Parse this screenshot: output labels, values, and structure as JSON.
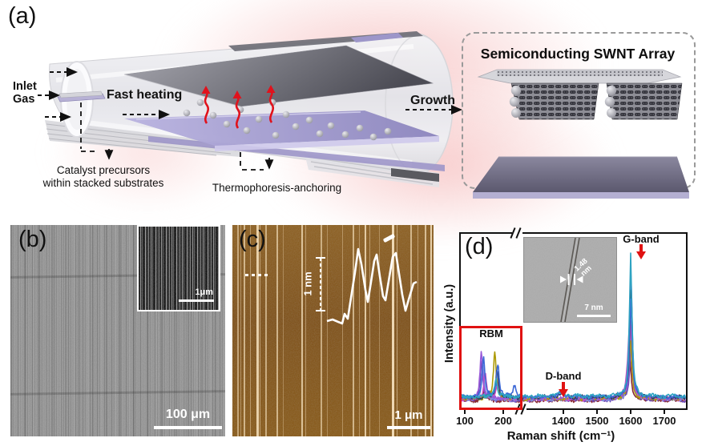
{
  "panel_a": {
    "label": "(a)",
    "inlet_gas": [
      "Inlet",
      "Gas"
    ],
    "fast_heating": "Fast heating",
    "growth": "Growth",
    "catalyst_caption": [
      "Catalyst precursors",
      "within stacked substrates"
    ],
    "thermophoresis_caption": "Thermophoresis-anchoring",
    "swnt_box_title": "Semiconducting SWNT Array"
  },
  "panel_b": {
    "label": "(b)",
    "scale_bar": "100 μm",
    "inset_scale_bar": "1μm"
  },
  "panel_c": {
    "label": "(c)",
    "height_scale": "1 nm",
    "scale_bar": "1 μm"
  },
  "panel_d": {
    "label": "(d)",
    "tem_inset": {
      "diameter_label": "1.48 nm",
      "scale_bar": "7 nm"
    }
  },
  "chart_data": {
    "type": "line",
    "xlabel": "Raman shift (cm⁻¹)",
    "ylabel": "Intensity (a.u.)",
    "x_ticks": [
      100,
      200,
      1400,
      1500,
      1600,
      1700
    ],
    "x_axis_break": [
      260,
      1330
    ],
    "annotations": [
      {
        "text": "RBM",
        "x": 150
      },
      {
        "text": "D-band",
        "x": 1390
      },
      {
        "text": "G-band",
        "x": 1600
      }
    ],
    "series": [
      {
        "name": "spectrum-maroon",
        "color": "#8a2b34",
        "peaks": [
          {
            "x": 152,
            "h": 0.06,
            "w": 5
          },
          {
            "x": 1560,
            "h": 0.05,
            "w": 8
          },
          {
            "x": 1597,
            "h": 0.34,
            "w": 5
          }
        ]
      },
      {
        "name": "spectrum-purple",
        "color": "#6a48b8",
        "peaks": [
          {
            "x": 144,
            "h": 0.26,
            "w": 4
          },
          {
            "x": 1602,
            "h": 0.46,
            "w": 5
          }
        ]
      },
      {
        "name": "spectrum-periwinkle",
        "color": "#7f8fe0",
        "peaks": [
          {
            "x": 147,
            "h": 0.23,
            "w": 4
          },
          {
            "x": 1601,
            "h": 0.58,
            "w": 5
          }
        ]
      },
      {
        "name": "spectrum-magenta",
        "color": "#c94cc4",
        "peaks": [
          {
            "x": 153,
            "h": 0.19,
            "w": 4
          },
          {
            "x": 186,
            "h": 0.12,
            "w": 4
          },
          {
            "x": 1598,
            "h": 0.55,
            "w": 7
          }
        ]
      },
      {
        "name": "spectrum-olive",
        "color": "#ad9b08",
        "peaks": [
          {
            "x": 178,
            "h": 0.33,
            "w": 4
          },
          {
            "x": 1599,
            "h": 0.42,
            "w": 5
          }
        ]
      },
      {
        "name": "spectrum-violet",
        "color": "#9a5ad8",
        "peaks": [
          {
            "x": 143,
            "h": 0.33,
            "w": 4
          },
          {
            "x": 1601,
            "h": 0.99,
            "w": 3.5
          }
        ]
      },
      {
        "name": "spectrum-navy",
        "color": "#2e4265",
        "peaks": [
          {
            "x": 184,
            "h": 0.2,
            "w": 4
          },
          {
            "x": 1392,
            "h": 0.02,
            "w": 15
          },
          {
            "x": 1601,
            "h": 0.8,
            "w": 4.5
          }
        ]
      },
      {
        "name": "spectrum-blue",
        "color": "#3c68d6",
        "peaks": [
          {
            "x": 149,
            "h": 0.27,
            "w": 4
          },
          {
            "x": 186,
            "h": 0.23,
            "w": 4
          },
          {
            "x": 229,
            "h": 0.08,
            "w": 5
          },
          {
            "x": 1392,
            "h": 0.025,
            "w": 15
          },
          {
            "x": 1600,
            "h": 0.7,
            "w": 5
          }
        ]
      },
      {
        "name": "spectrum-teal",
        "color": "#2ea3c2",
        "peaks": [
          {
            "x": 181,
            "h": 0.12,
            "w": 4
          },
          {
            "x": 1390,
            "h": 0.03,
            "w": 15
          },
          {
            "x": 1600,
            "h": 1.0,
            "w": 4.5
          }
        ]
      }
    ]
  }
}
